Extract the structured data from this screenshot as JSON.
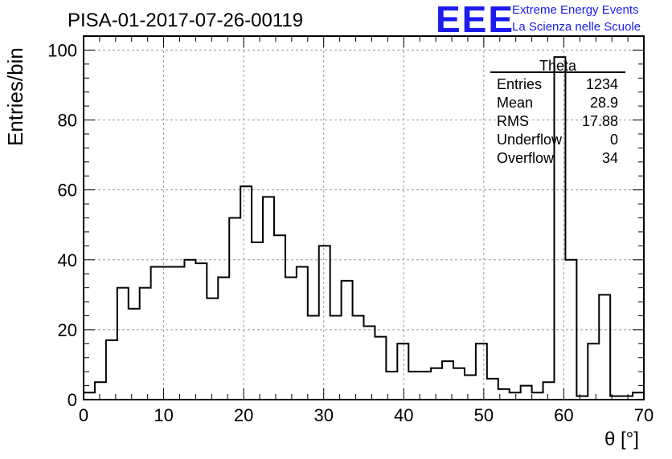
{
  "header": {
    "title": "PISA-01-2017-07-26-00119"
  },
  "logo": {
    "mark": "EEE",
    "line1": "Extreme Energy Events",
    "line2": "La Scienza nelle Scuole"
  },
  "stats": {
    "title": "Theta",
    "rows": [
      {
        "label": "Entries",
        "value": "1234"
      },
      {
        "label": "Mean",
        "value": "28.9"
      },
      {
        "label": "RMS",
        "value": "17.88"
      },
      {
        "label": "Underflow",
        "value": "0"
      },
      {
        "label": "Overflow",
        "value": "34"
      }
    ]
  },
  "chart_data": {
    "type": "histogram",
    "xlabel": "θ [°]",
    "ylabel": "Entries/bin",
    "xlim": [
      0,
      70
    ],
    "ylim": [
      0,
      104
    ],
    "grid": true,
    "bin_width": 1.4,
    "xticks": [
      0,
      10,
      20,
      30,
      40,
      50,
      60,
      70
    ],
    "yticks": [
      0,
      20,
      40,
      60,
      80,
      100
    ],
    "values": [
      2,
      5,
      17,
      32,
      26,
      32,
      38,
      38,
      38,
      40,
      39,
      29,
      35,
      52,
      61,
      45,
      58,
      47,
      35,
      38,
      24,
      44,
      24,
      34,
      24,
      21,
      18,
      8,
      16,
      8,
      8,
      9,
      11,
      9,
      7,
      16,
      6,
      3,
      2,
      4,
      2,
      5,
      98,
      40,
      1,
      16,
      30,
      1,
      1,
      2
    ],
    "line_color": "#000000"
  }
}
